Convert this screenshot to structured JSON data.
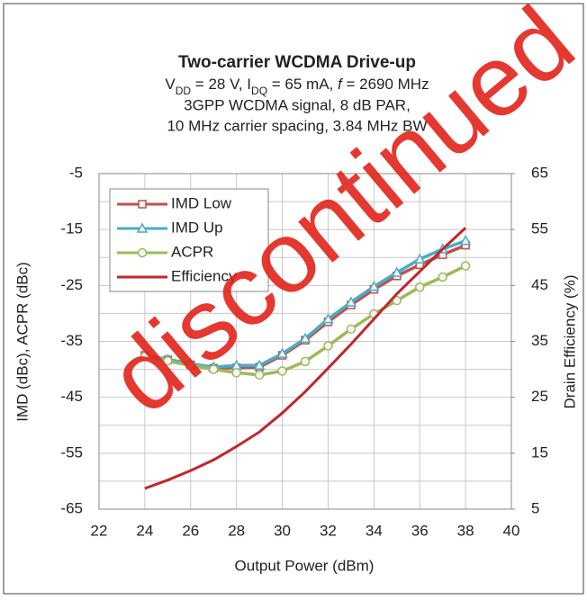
{
  "chart_data": {
    "type": "line",
    "title": "Two-carrier WCDMA Drive-up",
    "conditions": [
      {
        "text": "V"
      },
      {
        "text": "DD",
        "style": "sub"
      },
      {
        "text": " = 28 V, I"
      },
      {
        "text": "DQ",
        "style": "sub"
      },
      {
        "text": " = 65 mA, "
      },
      {
        "text": "f",
        "style": "italic"
      },
      {
        "text": " = 2690 MHz"
      }
    ],
    "subtitle": [
      "3GPP WCDMA signal, 8 dB PAR,",
      "10 MHz carrier spacing, 3.84 MHz BW"
    ],
    "watermark": "discontinued",
    "xlabel": "Output Power (dBm)",
    "ylabel": "IMD (dBc), ACPR (dBc)",
    "y2label": "Drain Efficiency (%)",
    "x": [
      24,
      25,
      26,
      27,
      28,
      29,
      30,
      31,
      32,
      33,
      34,
      35,
      36,
      37,
      38
    ],
    "xlim": [
      22,
      40
    ],
    "xticks": [
      22,
      24,
      26,
      28,
      30,
      32,
      34,
      36,
      38,
      40
    ],
    "ylim": [
      -65,
      -5
    ],
    "yticks": [
      -65,
      -55,
      -45,
      -35,
      -25,
      -15,
      -5
    ],
    "y_minor_ticks": [
      -60,
      -50,
      -40,
      -30,
      -20,
      -10
    ],
    "y2lim": [
      5,
      65
    ],
    "y2ticks": [
      5,
      15,
      25,
      35,
      45,
      55,
      65
    ],
    "grid": true,
    "legend": "top-left",
    "series": [
      {
        "name": "IMD Low",
        "color": "#c0504d",
        "marker": "square",
        "values": [
          -37.5,
          -38.3,
          -39.2,
          -39.8,
          -39.7,
          -39.6,
          -37.5,
          -34.8,
          -31.5,
          -28.5,
          -25.7,
          -23.3,
          -21.3,
          -19.5,
          -17.8
        ]
      },
      {
        "name": "IMD Up",
        "color": "#4bacc6",
        "marker": "triangle",
        "values": [
          -37.5,
          -38.2,
          -39.0,
          -39.6,
          -39.3,
          -39.3,
          -37.2,
          -34.5,
          -31.0,
          -28.0,
          -25.2,
          -22.7,
          -20.3,
          -18.5,
          -17.0
        ]
      },
      {
        "name": "ACPR",
        "color": "#9bbb59",
        "marker": "circle",
        "values": [
          -37.7,
          -38.5,
          -39.3,
          -40.0,
          -40.6,
          -41.0,
          -40.3,
          -38.6,
          -35.8,
          -32.8,
          -30.1,
          -27.7,
          -25.3,
          -23.5,
          -21.5
        ]
      },
      {
        "name": "Efficiency",
        "color": "#c0272d",
        "marker": "none",
        "axis": "y2",
        "values": [
          8.7,
          10.2,
          11.9,
          13.8,
          16.2,
          18.8,
          22.2,
          26.0,
          30.2,
          34.5,
          39.0,
          43.5,
          47.5,
          51.5,
          55.3
        ]
      }
    ]
  }
}
